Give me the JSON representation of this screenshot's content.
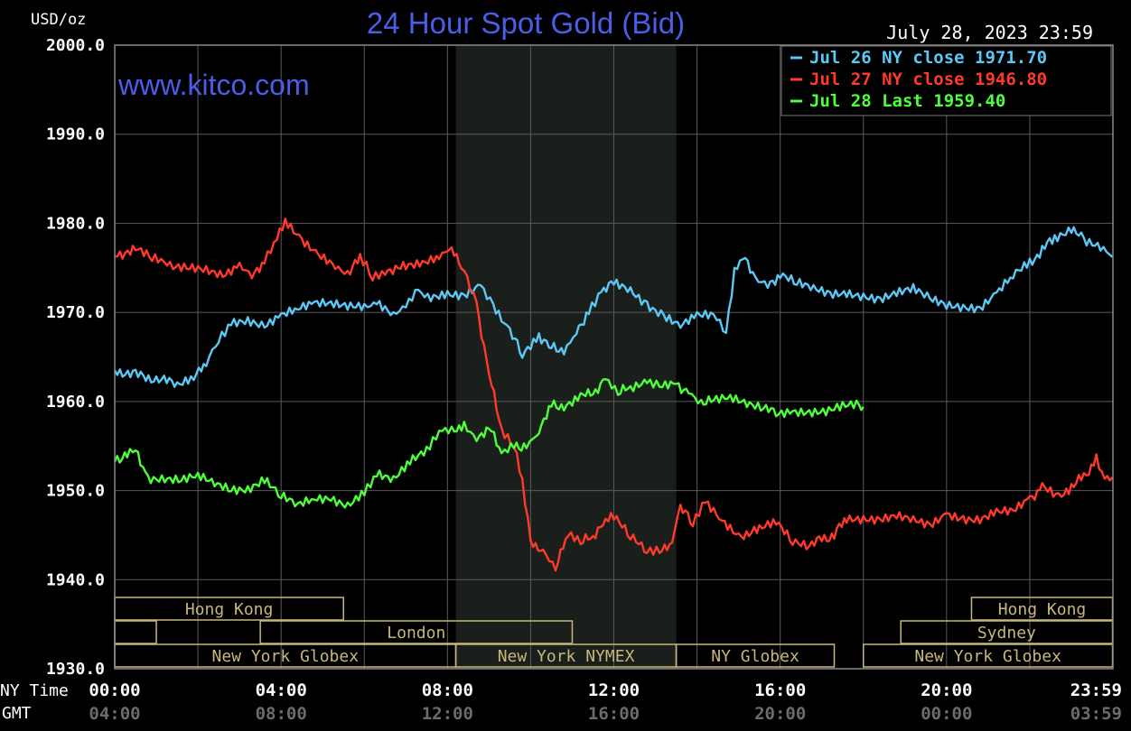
{
  "title": "24 Hour Spot Gold (Bid)",
  "watermark": "www.kitco.com",
  "unit_label": "USD/oz",
  "timestamp": "July 28, 2023 23:59",
  "legend": [
    {
      "text": "Jul 26 NY close 1971.70",
      "color": "#5bc8f5"
    },
    {
      "text": "Jul 27 NY close 1946.80",
      "color": "#ff3a2a"
    },
    {
      "text": "Jul 28 Last 1959.40",
      "color": "#4dff3a"
    }
  ],
  "axis": {
    "x_row1_label": "NY Time",
    "x_row2_label": "GMT",
    "x_ticks_ny": [
      "00:00",
      "04:00",
      "08:00",
      "12:00",
      "16:00",
      "20:00",
      "23:59"
    ],
    "x_ticks_gmt": [
      "04:00",
      "08:00",
      "12:00",
      "16:00",
      "20:00",
      "00:00",
      "03:59"
    ],
    "y_ticks": [
      "2000.0",
      "1990.0",
      "1980.0",
      "1970.0",
      "1960.0",
      "1950.0",
      "1940.0",
      "1930.0"
    ]
  },
  "sessions": [
    {
      "label": "Hong Kong",
      "start": 0,
      "end": 5.5,
      "row": 0
    },
    {
      "label": "",
      "start": 0,
      "end": 1,
      "row": 1
    },
    {
      "label": "London",
      "start": 3.5,
      "end": 11,
      "row": 1
    },
    {
      "label": "New York Globex",
      "start": 0,
      "end": 8.2,
      "row": 2
    },
    {
      "label": "New York NYMEX",
      "start": 8.2,
      "end": 13.5,
      "row": 2
    },
    {
      "label": "NY Globex",
      "start": 13.5,
      "end": 17.3,
      "row": 2
    },
    {
      "label": "Hong Kong",
      "start": 20.6,
      "end": 23.99,
      "row": 0
    },
    {
      "label": "Sydney",
      "start": 18.9,
      "end": 23.99,
      "row": 1
    },
    {
      "label": "New York Globex",
      "start": 18,
      "end": 23.99,
      "row": 2
    }
  ],
  "colors": {
    "background": "#000000",
    "grid": "#5a5a5a",
    "highlight": "#1b1f1b",
    "session_border": "#c8b77a",
    "title": "#4a5eea",
    "text": "#ffffff"
  },
  "chart_data": {
    "type": "line",
    "title": "24 Hour Spot Gold (Bid)",
    "ylabel": "USD/oz",
    "xlabel": "NY Time",
    "ylim": [
      1930,
      2000
    ],
    "xlim_hours": [
      0,
      24
    ],
    "x_unit": "hours (NY time)",
    "highlight_range": [
      8.2,
      13.5
    ],
    "series": [
      {
        "name": "Jul 26",
        "color": "#5bc8f5",
        "points": [
          [
            0,
            1963.5
          ],
          [
            0.5,
            1963
          ],
          [
            1,
            1962.5
          ],
          [
            1.5,
            1962
          ],
          [
            1.9,
            1963
          ],
          [
            2.2,
            1964
          ],
          [
            2.5,
            1967
          ],
          [
            2.8,
            1969
          ],
          [
            3.2,
            1969.3
          ],
          [
            3.6,
            1968.5
          ],
          [
            4,
            1969.5
          ],
          [
            4.4,
            1970.2
          ],
          [
            4.8,
            1971
          ],
          [
            5.2,
            1971.2
          ],
          [
            5.6,
            1971
          ],
          [
            6,
            1970.8
          ],
          [
            6.3,
            1971.2
          ],
          [
            6.7,
            1970
          ],
          [
            7,
            1970.5
          ],
          [
            7.3,
            1972.5
          ],
          [
            7.6,
            1971.8
          ],
          [
            8,
            1972.3
          ],
          [
            8.4,
            1972
          ],
          [
            8.8,
            1973
          ],
          [
            9.1,
            1971
          ],
          [
            9.5,
            1968
          ],
          [
            9.8,
            1965.2
          ],
          [
            10.2,
            1967.5
          ],
          [
            10.5,
            1966
          ],
          [
            10.8,
            1965.8
          ],
          [
            11.1,
            1968
          ],
          [
            11.4,
            1970
          ],
          [
            11.7,
            1972.5
          ],
          [
            12,
            1973.2
          ],
          [
            12.4,
            1972.5
          ],
          [
            12.8,
            1971
          ],
          [
            13.2,
            1969.8
          ],
          [
            13.6,
            1968.5
          ],
          [
            14,
            1969.5
          ],
          [
            14.4,
            1969.5
          ],
          [
            14.7,
            1967.8
          ],
          [
            14.9,
            1974.5
          ],
          [
            15.1,
            1976.2
          ],
          [
            15.4,
            1974
          ],
          [
            15.7,
            1973
          ],
          [
            16,
            1974.3
          ],
          [
            16.4,
            1973.2
          ],
          [
            16.8,
            1972.5
          ],
          [
            17.2,
            1972
          ],
          [
            17.6,
            1972.3
          ],
          [
            18,
            1972
          ],
          [
            18.4,
            1971.5
          ],
          [
            18.8,
            1972
          ],
          [
            19.2,
            1972.5
          ],
          [
            19.6,
            1971.5
          ],
          [
            20,
            1971
          ],
          [
            20.4,
            1970.8
          ],
          [
            20.8,
            1970.5
          ],
          [
            21.2,
            1972
          ],
          [
            21.6,
            1974
          ],
          [
            22,
            1975.5
          ],
          [
            22.3,
            1977
          ],
          [
            22.6,
            1978.5
          ],
          [
            23,
            1979.5
          ],
          [
            23.3,
            1978
          ],
          [
            23.7,
            1977.5
          ],
          [
            23.99,
            1976.2
          ]
        ]
      },
      {
        "name": "Jul 27",
        "color": "#ff3a2a",
        "points": [
          [
            0,
            1976.5
          ],
          [
            0.5,
            1977
          ],
          [
            0.9,
            1976
          ],
          [
            1.4,
            1975
          ],
          [
            1.8,
            1974.8
          ],
          [
            2.2,
            1974.6
          ],
          [
            2.6,
            1974.2
          ],
          [
            3,
            1975.5
          ],
          [
            3.3,
            1974
          ],
          [
            3.6,
            1976
          ],
          [
            3.9,
            1978.5
          ],
          [
            4.1,
            1980.5
          ],
          [
            4.5,
            1978.3
          ],
          [
            4.9,
            1976.5
          ],
          [
            5.3,
            1975
          ],
          [
            5.6,
            1974.5
          ],
          [
            5.9,
            1976
          ],
          [
            6.2,
            1974
          ],
          [
            6.5,
            1974.8
          ],
          [
            7,
            1975
          ],
          [
            7.4,
            1975.5
          ],
          [
            7.8,
            1976.5
          ],
          [
            8.1,
            1977
          ],
          [
            8.4,
            1975
          ],
          [
            8.7,
            1971
          ],
          [
            9,
            1963
          ],
          [
            9.3,
            1957
          ],
          [
            9.6,
            1955
          ],
          [
            9.8,
            1951
          ],
          [
            10,
            1944.5
          ],
          [
            10.3,
            1943
          ],
          [
            10.6,
            1941.5
          ],
          [
            10.9,
            1945
          ],
          [
            11.2,
            1944
          ],
          [
            11.5,
            1945
          ],
          [
            11.8,
            1946.5
          ],
          [
            12,
            1947
          ],
          [
            12.4,
            1945
          ],
          [
            12.8,
            1943.5
          ],
          [
            13.1,
            1943
          ],
          [
            13.4,
            1944.5
          ],
          [
            13.6,
            1948
          ],
          [
            13.9,
            1946.5
          ],
          [
            14.2,
            1948.5
          ],
          [
            14.6,
            1946.5
          ],
          [
            15,
            1945
          ],
          [
            15.5,
            1945.5
          ],
          [
            15.9,
            1946.5
          ],
          [
            16.3,
            1944.5
          ],
          [
            16.7,
            1944
          ],
          [
            17,
            1944.5
          ],
          [
            17.3,
            1945
          ],
          [
            17.6,
            1947
          ],
          [
            18,
            1947
          ],
          [
            18.4,
            1946.8
          ],
          [
            18.8,
            1947
          ],
          [
            19.2,
            1946.5
          ],
          [
            19.6,
            1946
          ],
          [
            20,
            1947.5
          ],
          [
            20.4,
            1947
          ],
          [
            20.8,
            1946.8
          ],
          [
            21.2,
            1947.5
          ],
          [
            21.6,
            1947.5
          ],
          [
            22,
            1949
          ],
          [
            22.3,
            1950.5
          ],
          [
            22.7,
            1949
          ],
          [
            23,
            1950.5
          ],
          [
            23.3,
            1951.5
          ],
          [
            23.6,
            1953.5
          ],
          [
            23.8,
            1951
          ],
          [
            23.99,
            1951.5
          ]
        ]
      },
      {
        "name": "Jul 28",
        "color": "#4dff3a",
        "points": [
          [
            0,
            1953.5
          ],
          [
            0.3,
            1954
          ],
          [
            0.5,
            1954.3
          ],
          [
            0.8,
            1951.5
          ],
          [
            1.2,
            1951.3
          ],
          [
            1.6,
            1951
          ],
          [
            2,
            1951.5
          ],
          [
            2.4,
            1950.8
          ],
          [
            2.8,
            1950.3
          ],
          [
            3.2,
            1950.3
          ],
          [
            3.6,
            1951.3
          ],
          [
            4,
            1949.3
          ],
          [
            4.4,
            1948.2
          ],
          [
            4.8,
            1949
          ],
          [
            5.2,
            1949.2
          ],
          [
            5.6,
            1948.5
          ],
          [
            6,
            1950
          ],
          [
            6.3,
            1952
          ],
          [
            6.7,
            1951.5
          ],
          [
            7.1,
            1953.5
          ],
          [
            7.5,
            1954.5
          ],
          [
            7.8,
            1957
          ],
          [
            8.1,
            1956.5
          ],
          [
            8.4,
            1957.5
          ],
          [
            8.7,
            1956
          ],
          [
            9,
            1957
          ],
          [
            9.3,
            1954.5
          ],
          [
            9.6,
            1955
          ],
          [
            9.9,
            1955
          ],
          [
            10.2,
            1957
          ],
          [
            10.5,
            1959.5
          ],
          [
            10.8,
            1959.5
          ],
          [
            11.2,
            1960.5
          ],
          [
            11.5,
            1961
          ],
          [
            11.8,
            1962.3
          ],
          [
            12.1,
            1961
          ],
          [
            12.4,
            1961.5
          ],
          [
            12.8,
            1962.5
          ],
          [
            13.1,
            1961.5
          ],
          [
            13.5,
            1962
          ],
          [
            13.8,
            1961
          ],
          [
            14.1,
            1960
          ],
          [
            14.4,
            1960
          ],
          [
            14.8,
            1960.5
          ],
          [
            15.2,
            1960
          ],
          [
            15.6,
            1959.5
          ],
          [
            15.9,
            1958.5
          ],
          [
            16.3,
            1959
          ],
          [
            16.7,
            1959
          ],
          [
            17.1,
            1959
          ],
          [
            17.5,
            1959.4
          ],
          [
            17.9,
            1959.5
          ],
          [
            18,
            1959.4
          ]
        ]
      }
    ]
  }
}
